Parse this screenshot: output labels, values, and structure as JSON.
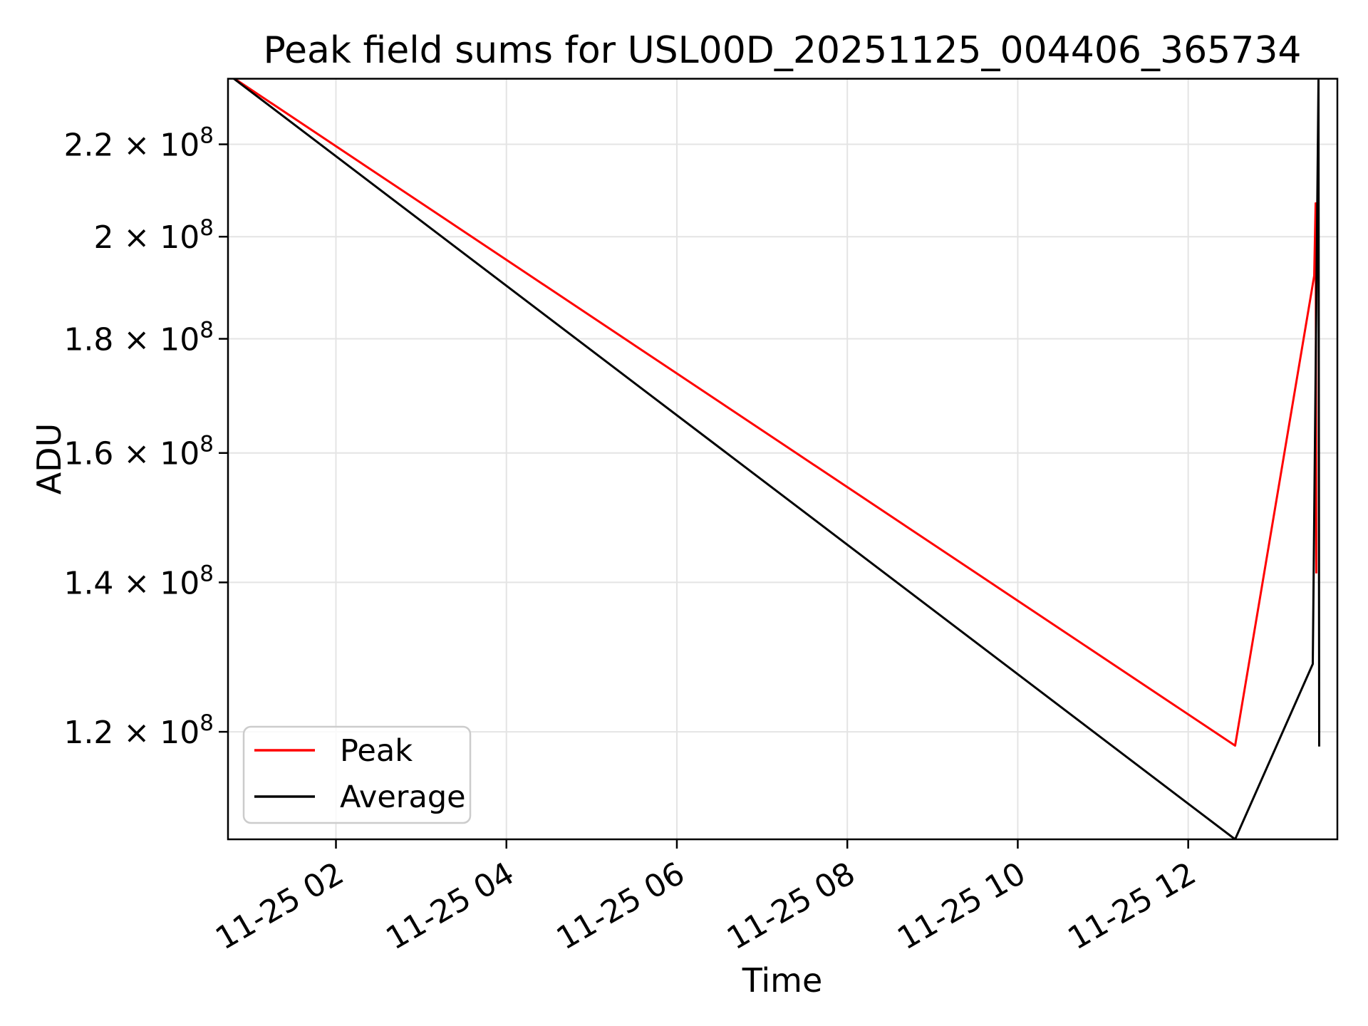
{
  "title": "Peak field sums for USL00D_20251125_004406_365734",
  "xlabel": "Time",
  "ylabel": "ADU",
  "legend": {
    "position": "lower left",
    "items": [
      {
        "label": "Peak",
        "color": "#ff0000"
      },
      {
        "label": "Average",
        "color": "#000000"
      }
    ]
  },
  "colors": {
    "background": "#ffffff",
    "frame": "#000000",
    "grid": "#e4e4e4",
    "tick": "#000000",
    "peak_line": "#ff0000",
    "average_line": "#000000",
    "legend_border": "#cccccc"
  },
  "chart_data": {
    "type": "line",
    "title": "Peak field sums for USL00D_20251125_004406_365734",
    "xlabel": "Time",
    "ylabel": "ADU",
    "yscale": "log",
    "grid": true,
    "legend_position": "lower left",
    "x_unit": "minutes after 2025-11-25 00:00",
    "xlim": [
      44,
      825
    ],
    "ylim": [
      107400000,
      235400000
    ],
    "xticks": [
      {
        "minute": 120,
        "label": "11-25 02"
      },
      {
        "minute": 240,
        "label": "11-25 04"
      },
      {
        "minute": 360,
        "label": "11-25 06"
      },
      {
        "minute": 480,
        "label": "11-25 08"
      },
      {
        "minute": 600,
        "label": "11-25 10"
      },
      {
        "minute": 720,
        "label": "11-25 12"
      }
    ],
    "yticks": [
      {
        "value": 220000000,
        "label_base": "2.2 × 10",
        "label_exp": "8"
      },
      {
        "value": 200000000,
        "label_base": "2 × 10",
        "label_exp": "8"
      },
      {
        "value": 180000000,
        "label_base": "1.8 × 10",
        "label_exp": "8"
      },
      {
        "value": 160000000,
        "label_base": "1.6 × 10",
        "label_exp": "8"
      },
      {
        "value": 140000000,
        "label_base": "1.4 × 10",
        "label_exp": "8"
      },
      {
        "value": 120000000,
        "label_base": "1.2 × 10",
        "label_exp": "8"
      }
    ],
    "series": [
      {
        "name": "Peak",
        "color": "#ff0000",
        "points": [
          [
            44,
            236500000
          ],
          [
            753,
            118300000
          ],
          [
            808.7,
            192100000
          ],
          [
            809.7,
            207000000
          ],
          [
            810.2,
            141300000
          ]
        ]
      },
      {
        "name": "Average",
        "color": "#000000",
        "points": [
          [
            44,
            236500000
          ],
          [
            753,
            107400000
          ],
          [
            807.7,
            128700000
          ],
          [
            811.7,
            235000000
          ],
          [
            812.2,
            118200000
          ]
        ]
      }
    ]
  }
}
